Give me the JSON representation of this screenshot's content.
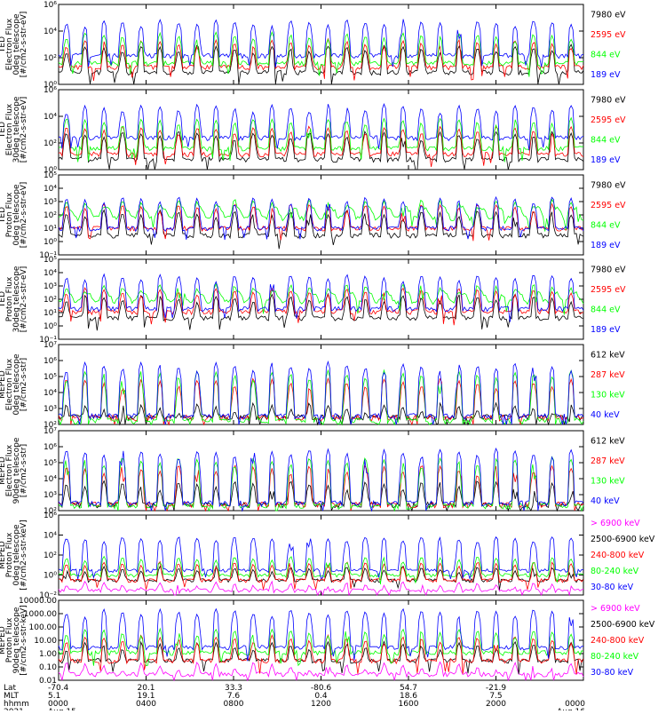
{
  "colors": {
    "blue": "#0000ff",
    "red": "#ff0000",
    "green": "#00ff00",
    "black": "#000000",
    "magenta": "#ff00ff"
  },
  "chart_data": [
    {
      "type": "line",
      "ylabel": [
        "TED",
        "Electron Flux",
        "0deg telescope",
        "[#/cm2-s-str-eV]"
      ],
      "yscale": "log",
      "ylim": [
        1,
        1000000
      ],
      "yticks": [
        {
          "v": 1,
          "l": "10⁰"
        },
        {
          "v": 100,
          "l": "10²"
        },
        {
          "v": 10000,
          "l": "10⁴"
        },
        {
          "v": 1000000,
          "l": "10⁶"
        }
      ],
      "series": [
        {
          "name": "7980 eV",
          "color": "black",
          "base": 8,
          "peak": 1200,
          "bg": 0
        },
        {
          "name": "2595 eV",
          "color": "red",
          "base": 20,
          "peak": 3000,
          "bg": 0
        },
        {
          "name": "844 eV",
          "color": "green",
          "base": 40,
          "peak": 10000,
          "bg": 0
        },
        {
          "name": "189 eV",
          "color": "blue",
          "base": 150,
          "peak": 100000,
          "bg": 0
        }
      ]
    },
    {
      "type": "line",
      "ylabel": [
        "TED",
        "Electron Flux",
        "30deg telescope",
        "[#/cm2-s-str-eV]"
      ],
      "yscale": "log",
      "ylim": [
        1,
        1000000
      ],
      "yticks": [
        {
          "v": 1,
          "l": "10⁰"
        },
        {
          "v": 100,
          "l": "10²"
        },
        {
          "v": 10000,
          "l": "10⁴"
        },
        {
          "v": 1000000,
          "l": "10⁶"
        }
      ],
      "series": [
        {
          "name": "7980 eV",
          "color": "black",
          "base": 6,
          "peak": 1000,
          "bg": 0
        },
        {
          "name": "2595 eV",
          "color": "red",
          "base": 15,
          "peak": 2500,
          "bg": 0
        },
        {
          "name": "844 eV",
          "color": "green",
          "base": 40,
          "peak": 10000,
          "bg": 0
        },
        {
          "name": "189 eV",
          "color": "blue",
          "base": 250,
          "peak": 100000,
          "bg": 0
        }
      ]
    },
    {
      "type": "line",
      "ylabel": [
        "TED",
        "Proton Flux",
        "0deg telescope",
        "[#/cm2-s-str-eV]"
      ],
      "yscale": "log",
      "ylim": [
        0.1,
        100000
      ],
      "yticks": [
        {
          "v": 0.1,
          "l": "10⁻¹"
        },
        {
          "v": 1,
          "l": "10⁰"
        },
        {
          "v": 10,
          "l": "10¹"
        },
        {
          "v": 100,
          "l": "10²"
        },
        {
          "v": 1000,
          "l": "10³"
        },
        {
          "v": 10000,
          "l": "10⁴"
        },
        {
          "v": 100000,
          "l": "10⁵"
        }
      ],
      "series": [
        {
          "name": "7980 eV",
          "color": "black",
          "base": 3,
          "peak": 300,
          "bg": 0
        },
        {
          "name": "2595 eV",
          "color": "red",
          "base": 10,
          "peak": 1000,
          "bg": 0
        },
        {
          "name": "844 eV",
          "color": "green",
          "base": 60,
          "peak": 2000,
          "bg": 400
        },
        {
          "name": "189 eV",
          "color": "blue",
          "base": 10,
          "peak": 3000,
          "bg": 0
        }
      ]
    },
    {
      "type": "line",
      "ylabel": [
        "TED",
        "Proton Flux",
        "30deg telescope",
        "[#/cm2-s-str-eV]"
      ],
      "yscale": "log",
      "ylim": [
        0.1,
        100000
      ],
      "yticks": [
        {
          "v": 0.1,
          "l": "10⁻¹"
        },
        {
          "v": 1,
          "l": "10⁰"
        },
        {
          "v": 10,
          "l": "10¹"
        },
        {
          "v": 100,
          "l": "10²"
        },
        {
          "v": 1000,
          "l": "10³"
        },
        {
          "v": 10000,
          "l": "10⁴"
        },
        {
          "v": 100000,
          "l": "10⁵"
        }
      ],
      "series": [
        {
          "name": "7980 eV",
          "color": "black",
          "base": 4,
          "peak": 300,
          "bg": 0
        },
        {
          "name": "2595 eV",
          "color": "red",
          "base": 12,
          "peak": 1000,
          "bg": 0
        },
        {
          "name": "844 eV",
          "color": "green",
          "base": 70,
          "peak": 2000,
          "bg": 400
        },
        {
          "name": "189 eV",
          "color": "blue",
          "base": 20,
          "peak": 10000,
          "bg": 0
        }
      ]
    },
    {
      "type": "line",
      "ylabel": [
        "MEPED",
        "Electron Flux",
        "0deg telescope",
        "[#/cm2-s-str]"
      ],
      "yscale": "log",
      "ylim": [
        100,
        10000000
      ],
      "yticks": [
        {
          "v": 100,
          "l": "10²"
        },
        {
          "v": 1000,
          "l": "10³"
        },
        {
          "v": 10000,
          "l": "10⁴"
        },
        {
          "v": 100000,
          "l": "10⁵"
        },
        {
          "v": 1000000,
          "l": "10⁶"
        },
        {
          "v": 10000000,
          "l": "10⁷"
        }
      ],
      "series": [
        {
          "name": "612 keV",
          "color": "black",
          "base": 300,
          "peak": 3000,
          "bg": 0
        },
        {
          "name": "287 keV",
          "color": "red",
          "base": 280,
          "peak": 100000,
          "bg": 0
        },
        {
          "name": "130 keV",
          "color": "green",
          "base": 170,
          "peak": 300000,
          "bg": 0
        },
        {
          "name": "40 keV",
          "color": "blue",
          "base": 350,
          "peak": 1000000,
          "bg": 0
        }
      ]
    },
    {
      "type": "line",
      "ylabel": [
        "MEPED",
        "Electron Flux",
        "90deg telescope",
        "[#/cm2-s-str]"
      ],
      "yscale": "log",
      "ylim": [
        100,
        10000000
      ],
      "yticks": [
        {
          "v": 100,
          "l": "10²"
        },
        {
          "v": 1000,
          "l": "10³"
        },
        {
          "v": 10000,
          "l": "10⁴"
        },
        {
          "v": 100000,
          "l": "10⁵"
        },
        {
          "v": 1000000,
          "l": "10⁶"
        },
        {
          "v": 10000000,
          "l": "10⁷"
        }
      ],
      "series": [
        {
          "name": "612 keV",
          "color": "black",
          "base": 250,
          "peak": 10000,
          "bg": 0
        },
        {
          "name": "287 keV",
          "color": "red",
          "base": 250,
          "peak": 100000,
          "bg": 0
        },
        {
          "name": "130 keV",
          "color": "green",
          "base": 200,
          "peak": 300000,
          "bg": 0
        },
        {
          "name": "40 keV",
          "color": "blue",
          "base": 300,
          "peak": 1000000,
          "bg": 0
        }
      ]
    },
    {
      "type": "line",
      "ylabel": [
        "MEPED",
        "Proton Flux",
        "0deg telescope",
        "[#/cm2-s-str-keV]"
      ],
      "yscale": "log",
      "ylim": [
        0.01,
        1000000
      ],
      "yticks": [
        {
          "v": 0.01,
          "l": "10⁻²"
        },
        {
          "v": 1,
          "l": "10⁰"
        },
        {
          "v": 100,
          "l": "10²"
        },
        {
          "v": 10000,
          "l": "10⁴"
        },
        {
          "v": 1000000,
          "l": "10⁶"
        }
      ],
      "series": [
        {
          "name": "> 6900 keV",
          "color": "magenta",
          "base": 0.03,
          "peak": 0.3,
          "bg": 0
        },
        {
          "name": "2500-6900 keV",
          "color": "black",
          "base": 0.3,
          "peak": 10,
          "bg": 0
        },
        {
          "name": "240-800 keV",
          "color": "red",
          "base": 0.3,
          "peak": 30,
          "bg": 0
        },
        {
          "name": "80-240 keV",
          "color": "green",
          "base": 1,
          "peak": 100,
          "bg": 0
        },
        {
          "name": "30-80 keV",
          "color": "blue",
          "base": 3,
          "peak": 10000,
          "bg": 0
        }
      ]
    },
    {
      "type": "line",
      "ylabel": [
        "MEPED",
        "Proton Flux",
        "90deg telescope",
        "[#/cm2-s-str-keV]"
      ],
      "yscale": "log",
      "ylim": [
        0.01,
        10000
      ],
      "yticks": [
        {
          "v": 0.01,
          "l": "0.01"
        },
        {
          "v": 0.1,
          "l": "0.10"
        },
        {
          "v": 1,
          "l": "1.00"
        },
        {
          "v": 10,
          "l": "10.00"
        },
        {
          "v": 100,
          "l": "100.00"
        },
        {
          "v": 1000,
          "l": "1000.00"
        },
        {
          "v": 10000,
          "l": "10000.00"
        }
      ],
      "series": [
        {
          "name": "> 6900 keV",
          "color": "magenta",
          "base": 0.03,
          "peak": 0.3,
          "bg": 0
        },
        {
          "name": "2500-6900 keV",
          "color": "black",
          "base": 0.3,
          "peak": 10,
          "bg": 0
        },
        {
          "name": "240-800 keV",
          "color": "red",
          "base": 0.3,
          "peak": 30,
          "bg": 0
        },
        {
          "name": "80-240 keV",
          "color": "green",
          "base": 1.2,
          "peak": 100,
          "bg": 0
        },
        {
          "name": "30-80 keV",
          "color": "blue",
          "base": 3,
          "peak": 3000,
          "bg": 0
        }
      ]
    }
  ],
  "x_axis": {
    "row_labels": [
      "Lat",
      "MLT",
      "hhmm",
      "2021"
    ],
    "ticks": [
      {
        "lat": "-70.4",
        "mlt": "5.1",
        "hhmm": "0000",
        "date": "Aug 15"
      },
      {
        "lat": "20.1",
        "mlt": "19.1",
        "hhmm": "0400",
        "date": ""
      },
      {
        "lat": "33.3",
        "mlt": "7.6",
        "hhmm": "0800",
        "date": ""
      },
      {
        "lat": "-80.6",
        "mlt": "0.4",
        "hhmm": "1200",
        "date": ""
      },
      {
        "lat": "54.7",
        "mlt": "18.6",
        "hhmm": "1600",
        "date": ""
      },
      {
        "lat": "-21.9",
        "mlt": "7.5",
        "hhmm": "2000",
        "date": ""
      },
      {
        "lat": "",
        "mlt": "",
        "hhmm": "0000",
        "date": "Aug 16"
      }
    ]
  }
}
